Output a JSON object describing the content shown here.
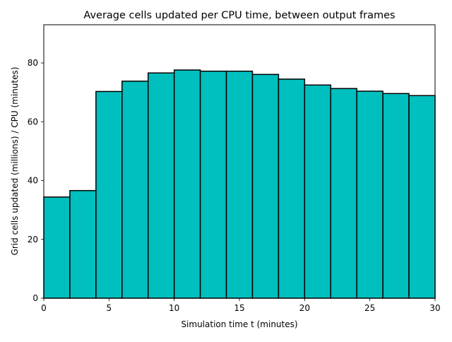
{
  "chart_data": {
    "type": "bar",
    "title": "Average cells updated per CPU time, between output frames",
    "xlabel": "Simulation time t (minutes)",
    "ylabel": "Grid cells updated (millions) / CPU (minutes)",
    "xlim": [
      0,
      30
    ],
    "ylim": [
      0,
      93
    ],
    "xticks": [
      0,
      5,
      10,
      15,
      20,
      25,
      30
    ],
    "yticks": [
      0,
      20,
      40,
      60,
      80
    ],
    "grid": false,
    "bar_color": "#00bfbf",
    "edge_color": "#000000",
    "bins": [
      {
        "x0": 0,
        "x1": 2,
        "value": 34.4
      },
      {
        "x0": 2,
        "x1": 4,
        "value": 36.6
      },
      {
        "x0": 4,
        "x1": 6,
        "value": 70.3
      },
      {
        "x0": 6,
        "x1": 8,
        "value": 73.8
      },
      {
        "x0": 8,
        "x1": 10,
        "value": 76.6
      },
      {
        "x0": 10,
        "x1": 12,
        "value": 77.6
      },
      {
        "x0": 12,
        "x1": 14,
        "value": 77.2
      },
      {
        "x0": 14,
        "x1": 16,
        "value": 77.2
      },
      {
        "x0": 16,
        "x1": 18,
        "value": 76.1
      },
      {
        "x0": 18,
        "x1": 20,
        "value": 74.5
      },
      {
        "x0": 20,
        "x1": 22,
        "value": 72.5
      },
      {
        "x0": 22,
        "x1": 24,
        "value": 71.3
      },
      {
        "x0": 24,
        "x1": 26,
        "value": 70.4
      },
      {
        "x0": 26,
        "x1": 28,
        "value": 69.6
      },
      {
        "x0": 28,
        "x1": 30,
        "value": 68.9
      }
    ]
  }
}
